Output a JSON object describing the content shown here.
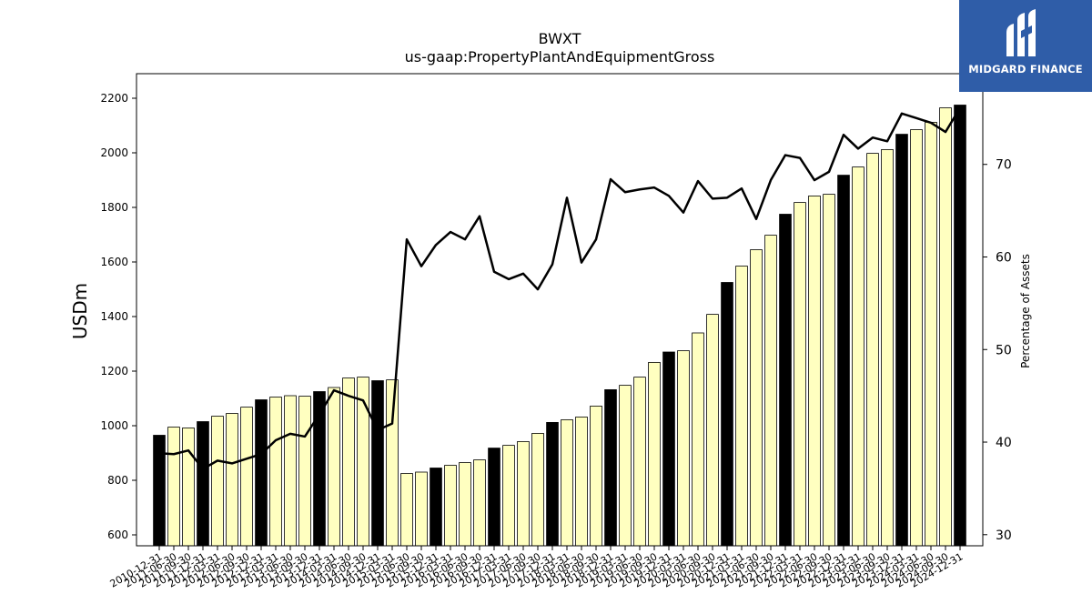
{
  "logo": {
    "text": "MIDGARD FINANCE",
    "icon": "midgard-logo-icon",
    "background": "#2f5da8"
  },
  "chart_data": {
    "type": "bar",
    "title": "BWXT",
    "subtitle": "us-gaap:PropertyPlantAndEquipmentGross",
    "ylabel": "USDm",
    "y2label": "Percentage of Assets",
    "ylim": [
      560,
      2290
    ],
    "y2lim": [
      28.8,
      79.8
    ],
    "yticks": [
      600,
      800,
      1000,
      1200,
      1400,
      1600,
      1800,
      2000,
      2200
    ],
    "y2ticks": [
      30,
      40,
      50,
      60,
      70
    ],
    "grid": false,
    "categories": [
      "2010-12-31",
      "2011-06-30",
      "2011-09-30",
      "2011-12-31",
      "2012-03-31",
      "2012-06-30",
      "2012-09-30",
      "2012-12-31",
      "2013-03-31",
      "2013-06-30",
      "2013-09-30",
      "2013-12-31",
      "2014-03-31",
      "2014-06-30",
      "2014-09-30",
      "2014-12-31",
      "2015-03-31",
      "2015-06-30",
      "2015-09-30",
      "2015-12-31",
      "2016-03-31",
      "2016-06-30",
      "2016-09-30",
      "2016-12-31",
      "2017-03-31",
      "2017-06-30",
      "2017-09-30",
      "2017-12-31",
      "2018-03-31",
      "2018-06-30",
      "2018-09-30",
      "2018-12-31",
      "2019-03-31",
      "2019-06-30",
      "2019-09-30",
      "2019-12-31",
      "2020-03-31",
      "2020-06-30",
      "2020-09-30",
      "2020-12-31",
      "2021-03-31",
      "2021-06-30",
      "2021-09-30",
      "2021-12-31",
      "2022-03-31",
      "2022-06-30",
      "2022-09-30",
      "2022-12-31",
      "2023-03-31",
      "2023-06-30",
      "2023-09-30",
      "2023-12-31",
      "2024-03-31",
      "2024-06-30",
      "2024-09-30",
      "2024-12-31"
    ],
    "xtick_labels": [
      "2010-12-31",
      "2011-06-30",
      "2011-09-30",
      "2011-12-31",
      "2012-03-31",
      "2012-06-30",
      "2012-09-30",
      "2012-12-31",
      "2013-03-31",
      "2013-06-30",
      "2013-09-30",
      "2013-12-31",
      "2014-03-31",
      "2014-06-30",
      "2014-09-30",
      "2014-12-31",
      "2015-03-31",
      "2015-06-30",
      "2015-09-30",
      "2015-12-31",
      "2016-03-31",
      "2016-06-30",
      "2016-09-30",
      "2016-12-31",
      "2017-03-31",
      "2017-06-30",
      "2017-09-30",
      "2017-12-31",
      "2018-03-31",
      "2018-06-30",
      "2018-09-30",
      "2018-12-31",
      "2019-03-31",
      "2019-06-30",
      "2019-09-30",
      "2019-12-31",
      "2020-03-31",
      "2020-06-30",
      "2020-09-30",
      "2020-12-31",
      "2021-03-31",
      "2021-06-30",
      "2021-09-30",
      "2021-12-31",
      "2022-03-31",
      "2022-06-30",
      "2022-09-30",
      "2022-12-31",
      "2023-03-31",
      "2023-06-30",
      "2023-09-30",
      "2023-12-31",
      "2024-03-31",
      "2024-06-30",
      "2024-09-30",
      "2024-12-31"
    ],
    "year_end": [
      true,
      false,
      false,
      true,
      false,
      false,
      false,
      true,
      false,
      false,
      false,
      true,
      false,
      false,
      false,
      true,
      false,
      false,
      false,
      true,
      false,
      false,
      false,
      true,
      false,
      false,
      false,
      true,
      false,
      false,
      false,
      true,
      false,
      false,
      false,
      true,
      false,
      false,
      false,
      true,
      false,
      false,
      false,
      true,
      false,
      false,
      false,
      true,
      false,
      false,
      false,
      true,
      false,
      false,
      false,
      true
    ],
    "series": [
      {
        "name": "",
        "kind": "bar",
        "axis": "left",
        "values": [
          965,
          995,
          992,
          1015,
          1035,
          1045,
          1068,
          1095,
          1105,
          1110,
          1108,
          1125,
          1140,
          1175,
          1178,
          1165,
          1168,
          825,
          830,
          845,
          855,
          865,
          875,
          918,
          928,
          942,
          972,
          1012,
          1022,
          1032,
          1072,
          1132,
          1148,
          1178,
          1232,
          1270,
          1275,
          1340,
          1408,
          1525,
          1585,
          1645,
          1698,
          1775,
          1818,
          1842,
          1848,
          1918,
          1948,
          1998,
          2012,
          2068,
          2085,
          2112,
          2165,
          2175
        ]
      },
      {
        "name": "",
        "kind": "line",
        "axis": "right",
        "values": [
          38.8,
          38.7,
          39.1,
          37.1,
          38.0,
          37.7,
          38.2,
          38.7,
          40.2,
          40.9,
          40.6,
          43.0,
          45.6,
          45.0,
          44.5,
          41.3,
          42.0,
          61.9,
          59.0,
          61.3,
          62.7,
          61.9,
          64.4,
          58.4,
          57.6,
          58.2,
          56.5,
          59.2,
          66.4,
          59.4,
          61.9,
          68.4,
          67.0,
          67.3,
          67.5,
          66.6,
          64.8,
          68.2,
          66.3,
          66.4,
          67.4,
          64.1,
          68.3,
          71.0,
          70.7,
          68.3,
          69.2,
          73.2,
          71.7,
          72.9,
          72.5,
          75.5,
          75.0,
          74.5,
          73.5,
          76.1
        ]
      }
    ],
    "colors": {
      "bar_regular": "#ffffc0",
      "bar_year_end": "#000000",
      "bar_edge": "#000000",
      "line": "#000000"
    }
  }
}
